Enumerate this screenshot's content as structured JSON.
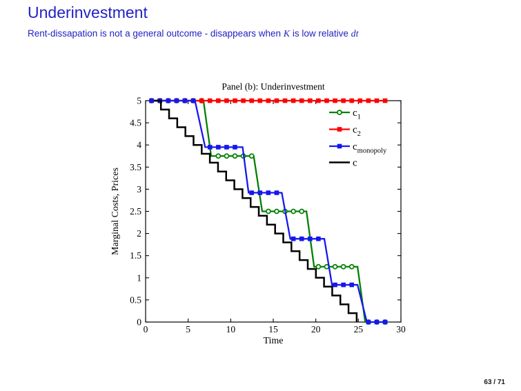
{
  "header": {
    "title": "Underinvestment",
    "title_color": "#2222c4",
    "subtitle": {
      "part1": "Rent-dissapation is not a general outcome - disappears when ",
      "k_symbol": "K",
      "part2": " is low relative ",
      "dt_symbol": "dt"
    }
  },
  "footer": {
    "page": "63 / 71"
  },
  "chart_data": {
    "type": "line",
    "title": "Panel (b): Underinvestment",
    "xlabel": "Time",
    "ylabel": "Marginal Costs, Prices",
    "xlim": [
      0,
      30
    ],
    "ylim": [
      0,
      5
    ],
    "xticks": [
      0,
      5,
      10,
      15,
      20,
      25,
      30
    ],
    "yticks": [
      0,
      0.5,
      1,
      1.5,
      2,
      2.5,
      3,
      3.5,
      4,
      4.5,
      5
    ],
    "grid": false,
    "box": true,
    "legend_position": "upper-right-inside-no-box",
    "marker_start_t": 0.7,
    "marker_interval_t": 0.98,
    "series": [
      {
        "name": "c_1",
        "legend_base": "c",
        "legend_sub": "1",
        "color": "#008000",
        "marker": "circle-open",
        "line_width": 2.3,
        "x": [
          0.4,
          6.8,
          7.7,
          12.7,
          13.7,
          18.9,
          19.8,
          24.9,
          25.8,
          28.2
        ],
        "y": [
          5,
          5,
          3.75,
          3.75,
          2.5,
          2.5,
          1.25,
          1.25,
          0,
          0
        ]
      },
      {
        "name": "c_2",
        "legend_base": "c",
        "legend_sub": "2",
        "color": "#ff0000",
        "marker": "square",
        "line_width": 2.3,
        "x": [
          0.4,
          28.2
        ],
        "y": [
          5,
          5
        ]
      },
      {
        "name": "c_monopoly",
        "legend_base": "c",
        "legend_sub": "monopoly",
        "color": "#1717ee",
        "marker": "square",
        "line_width": 2.3,
        "x": [
          0.4,
          5.8,
          7.0,
          11.4,
          12.1,
          16.0,
          17.0,
          21.0,
          21.9,
          24.9,
          26.0,
          28.2
        ],
        "y": [
          5,
          5,
          3.95,
          3.95,
          2.92,
          2.92,
          1.88,
          1.88,
          0.84,
          0.84,
          0,
          0
        ]
      },
      {
        "name": "c",
        "legend_base": "c",
        "legend_sub": "",
        "color": "#000000",
        "marker": "none",
        "line_width": 2.5,
        "stair": {
          "t_start": 1.0,
          "first_drop_t": 1.8,
          "last_drop_t": 24.8,
          "n_drops": 25,
          "v_start": 5,
          "v_end": 0,
          "drop_size": 0.2
        }
      }
    ]
  }
}
